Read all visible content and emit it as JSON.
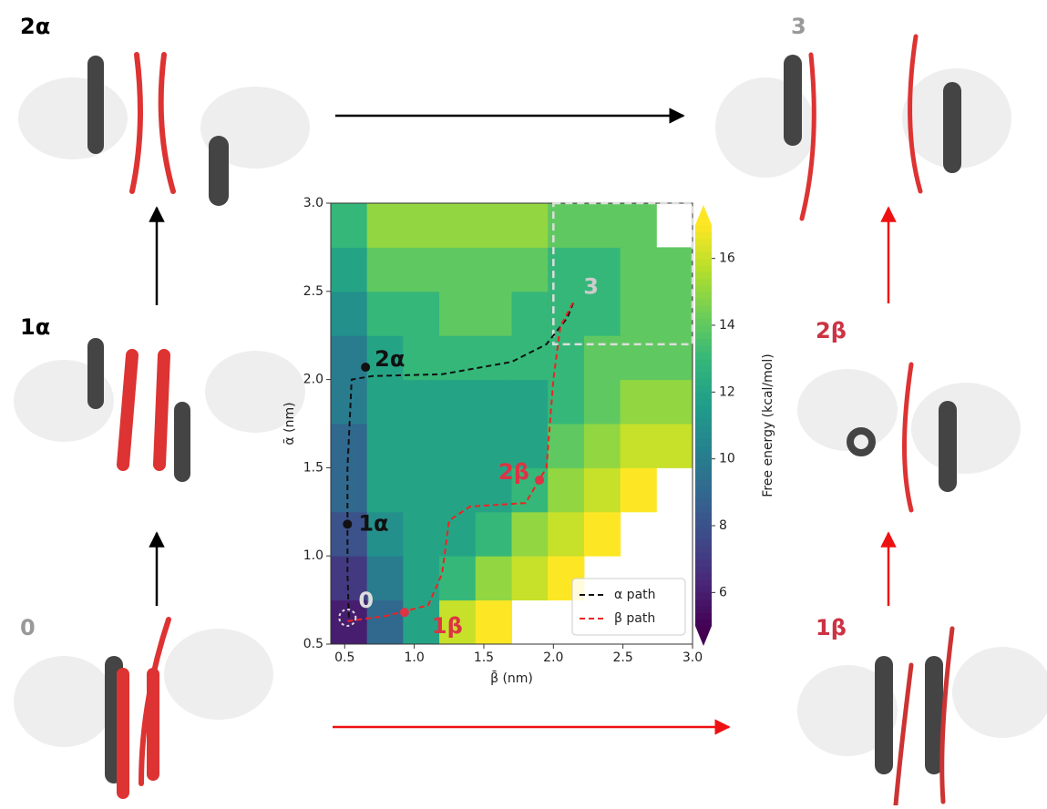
{
  "chart_data": {
    "type": "heatmap",
    "xlabel": "β̄ (nm)",
    "ylabel": "ᾱ (nm)",
    "xlim": [
      0.4,
      3.0
    ],
    "ylim": [
      0.5,
      3.0
    ],
    "xticks": [
      0.5,
      {
        "value": 1,
        "label": "1.0"
      },
      1.5,
      {
        "value": 2,
        "label": "2.0"
      },
      2.5,
      {
        "value": 3,
        "label": "3.0"
      }
    ],
    "yticks": [
      0.5,
      {
        "value": 1,
        "label": "1.0"
      },
      1.5,
      {
        "value": 2,
        "label": "2.0"
      },
      2.5,
      {
        "value": 3,
        "label": "3.0"
      }
    ],
    "xbins": [
      0.4,
      0.66,
      0.92,
      1.18,
      1.44,
      1.7,
      1.96,
      2.22,
      2.48,
      2.74,
      3.0
    ],
    "ybins": [
      0.5,
      0.75,
      1.0,
      1.25,
      1.5,
      1.75,
      2.0,
      2.25,
      2.5,
      2.75,
      3.0
    ],
    "z": [
      [
        6,
        9,
        12,
        16,
        17,
        null,
        null,
        null,
        null,
        null
      ],
      [
        7,
        10,
        12,
        13,
        15,
        16,
        17,
        null,
        null,
        null
      ],
      [
        8,
        11,
        12,
        12,
        13,
        15,
        16,
        17,
        null,
        null
      ],
      [
        9,
        12,
        12,
        12,
        12,
        13,
        15,
        16,
        17,
        null
      ],
      [
        9,
        12,
        12,
        12,
        12,
        12,
        14,
        15,
        16,
        16
      ],
      [
        10,
        12,
        12,
        12,
        12,
        12,
        13,
        14,
        15,
        15
      ],
      [
        10,
        12,
        13,
        13,
        13,
        13,
        13,
        14,
        14,
        14
      ],
      [
        11,
        13,
        13,
        14,
        14,
        13,
        13,
        13,
        14,
        14
      ],
      [
        12,
        14,
        14,
        14,
        14,
        14,
        13,
        13,
        14,
        14
      ],
      [
        13,
        15,
        15,
        15,
        15,
        15,
        14,
        14,
        14,
        null
      ]
    ],
    "colormap": "viridis",
    "colorbar_label": "Free energy (kcal/mol)",
    "zlim": [
      5,
      17
    ],
    "zticks": [
      6,
      8,
      10,
      12,
      14,
      16
    ],
    "series": [
      {
        "name": "α path",
        "color": "#111111",
        "x": [
          0.53,
          0.52,
          0.52,
          0.55,
          0.7,
          1.2,
          1.7,
          1.95,
          2.1,
          2.15
        ],
        "y": [
          0.65,
          0.9,
          1.5,
          2.0,
          2.02,
          2.03,
          2.1,
          2.2,
          2.35,
          2.45
        ]
      },
      {
        "name": "β path",
        "color": "#ee2222",
        "x": [
          0.52,
          0.8,
          1.1,
          1.2,
          1.25,
          1.4,
          1.8,
          1.95,
          2.0,
          2.05,
          2.15
        ],
        "y": [
          0.63,
          0.66,
          0.72,
          0.9,
          1.2,
          1.28,
          1.3,
          1.5,
          2.0,
          2.3,
          2.45
        ]
      }
    ],
    "legend_loc": "lower right",
    "annotations": [
      {
        "text": "0",
        "x": 0.52,
        "y": 0.65,
        "color": "#dddddd",
        "marker": "ring"
      },
      {
        "text": "1α",
        "x": 0.52,
        "y": 1.18,
        "color": "#111111",
        "marker": "dot"
      },
      {
        "text": "2α",
        "x": 0.65,
        "y": 2.07,
        "color": "#111111",
        "marker": "dot"
      },
      {
        "text": "1β",
        "x": 0.93,
        "y": 0.68,
        "color": "#dd3344",
        "marker": "dot"
      },
      {
        "text": "2β",
        "x": 1.9,
        "y": 1.43,
        "color": "#dd3344",
        "marker": "dot"
      },
      {
        "text": "3",
        "x": 2.15,
        "y": 2.45,
        "color": "#cccccc",
        "marker": "none"
      }
    ],
    "state3_box": {
      "x": [
        2.0,
        3.0
      ],
      "y": [
        2.2,
        3.0
      ]
    }
  },
  "panels": [
    {
      "label": "2α",
      "color": "#000000"
    },
    {
      "label": "3",
      "color": "#999999"
    },
    {
      "label": "1α",
      "color": "#000000"
    },
    {
      "label": "2β",
      "color": "#cc3344"
    },
    {
      "label": "0",
      "color": "#999999"
    },
    {
      "label": "1β",
      "color": "#cc3344"
    }
  ]
}
